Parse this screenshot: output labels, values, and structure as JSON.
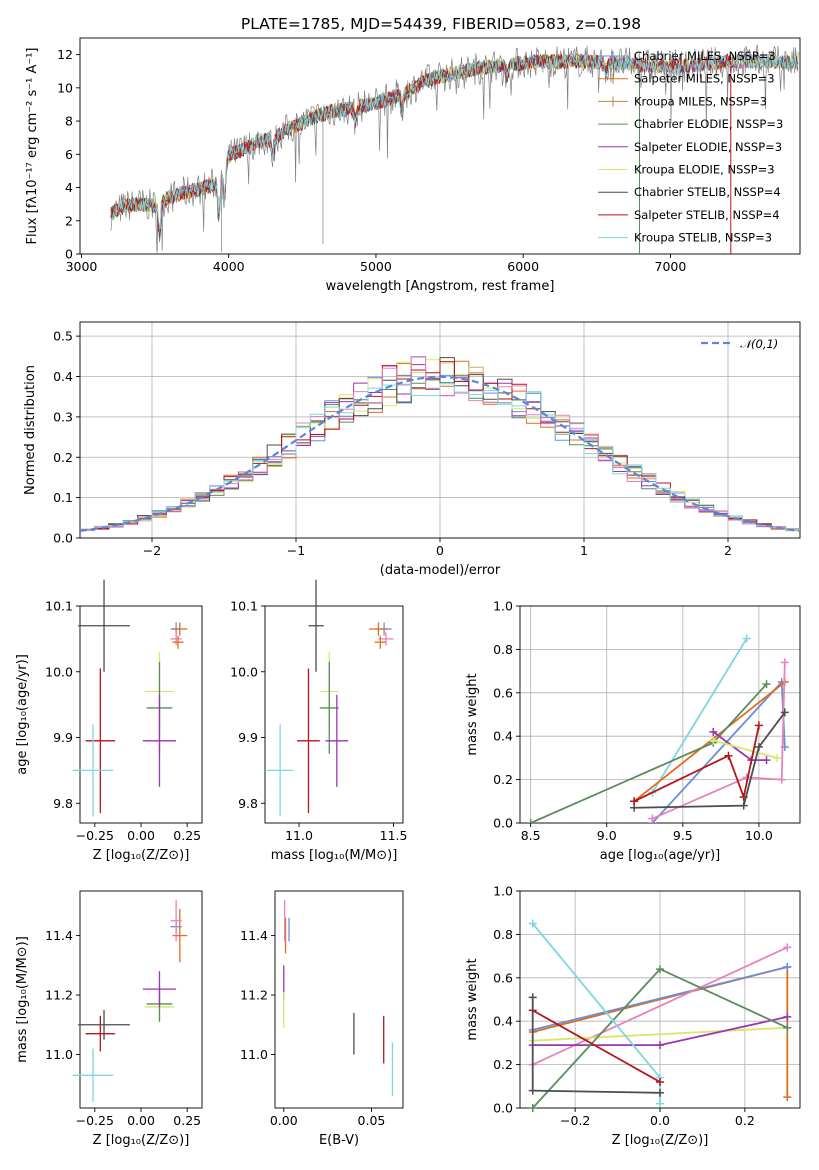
{
  "title": "PLATE=1785, MJD=54439, FIBERID=0583, z=0.198",
  "colors": {
    "chabrier_miles": "#6a8fd8",
    "salpeter_miles": "#e06d1e",
    "kroupa_miles": "#b98a4a",
    "chabrier_elodie": "#5b8c5e",
    "salpeter_elodie": "#9a35b3",
    "kroupa_elodie": "#d6e86a",
    "chabrier_stelib": "#4d4d4d",
    "salpeter_stelib": "#b5161c",
    "kroupa_stelib": "#7fd6e0",
    "pink": "#e882bd"
  },
  "chart_data": [
    {
      "type": "line",
      "title": "PLATE=1785, MJD=54439, FIBERID=0583, z=0.198",
      "xlabel": "wavelength [Angstrom, rest frame]",
      "ylabel": "Flux [fλ10⁻¹⁷ erg cm⁻² s⁻¹ A⁻¹]",
      "xlim": [
        2990,
        7880
      ],
      "ylim": [
        0,
        13
      ],
      "xticks": [
        "3000",
        "4000",
        "5000",
        "6000",
        "7000"
      ],
      "yticks": [
        "0",
        "2",
        "4",
        "6",
        "8",
        "10",
        "12"
      ],
      "legend_position": "right",
      "legend": [
        "Chabrier MILES, NSSP=3",
        "Salpeter MILES, NSSP=3",
        "Kroupa MILES, NSSP=3",
        "Chabrier ELODIE, NSSP=3",
        "Salpeter ELODIE, NSSP=3",
        "Kroupa ELODIE, NSSP=3",
        "Chabrier STELIB, NSSP=4",
        "Salpeter STELIB, NSSP=4",
        "Kroupa STELIB, NSSP=3"
      ],
      "continuum": {
        "x": [
          3200,
          3300,
          3400,
          3500,
          3600,
          3700,
          3800,
          3900,
          4000,
          4100,
          4200,
          4300,
          4400,
          4500,
          4600,
          4700,
          4800,
          4900,
          5000,
          5100,
          5200,
          5300,
          5400,
          5500,
          5600,
          5700,
          5800,
          5900,
          6000,
          6200,
          6400,
          6600,
          6800,
          7000,
          7200,
          7400,
          7600,
          7880
        ],
        "y": [
          2.4,
          2.9,
          3.0,
          2.9,
          3.4,
          3.7,
          3.9,
          4.2,
          5.9,
          6.3,
          6.8,
          6.9,
          7.5,
          7.9,
          8.3,
          8.6,
          8.7,
          8.9,
          9.1,
          9.4,
          9.7,
          10.3,
          10.6,
          10.8,
          11.0,
          11.2,
          11.3,
          11.4,
          11.5,
          11.6,
          11.6,
          11.5,
          11.4,
          11.3,
          11.4,
          11.6,
          11.6,
          11.5
        ]
      }
    },
    {
      "type": "bar",
      "xlabel": "(data-model)/error",
      "ylabel": "Normed distribution",
      "xlim": [
        -2.5,
        2.5
      ],
      "ylim": [
        0,
        0.535
      ],
      "xticks": [
        "−2",
        "−1",
        "0",
        "1",
        "2"
      ],
      "yticks": [
        "0.0",
        "0.1",
        "0.2",
        "0.3",
        "0.4",
        "0.5"
      ],
      "legend": [
        "𝒩(0,1)"
      ],
      "legend_position": "upper right",
      "bin_width": 0.1
    },
    {
      "type": "scatter",
      "xlabel": "Z [log₁₀(Z/Z⊙)]",
      "ylabel": "age  [log₁₀(age/yr)]",
      "xlim": [
        -0.33,
        0.33
      ],
      "ylim": [
        9.77,
        10.1
      ],
      "xticks": [
        "−0.25",
        "0.00",
        "0.25"
      ],
      "yticks": [
        "9.8",
        "9.9",
        "10.0",
        "10.1"
      ],
      "points": [
        {
          "x": 0.19,
          "y": 10.065,
          "xerr": 0.03,
          "yerr": 0.01
        },
        {
          "x": 0.21,
          "y": 10.065,
          "xerr": 0.04,
          "yerr": 0.01
        },
        {
          "x": 0.19,
          "y": 10.05,
          "xerr": 0.03,
          "yerr": 0.01
        },
        {
          "x": 0.2,
          "y": 10.045,
          "xerr": 0.03,
          "yerr": 0.01
        },
        {
          "x": -0.2,
          "y": 10.07,
          "xerr": 0.14,
          "yerr": 0.07
        },
        {
          "x": 0.1,
          "y": 9.97,
          "xerr": 0.08,
          "yerr": 0.06
        },
        {
          "x": 0.1,
          "y": 9.945,
          "xerr": 0.07,
          "yerr": 0.07
        },
        {
          "x": 0.1,
          "y": 9.895,
          "xerr": 0.09,
          "yerr": 0.07
        },
        {
          "x": -0.22,
          "y": 9.895,
          "xerr": 0.08,
          "yerr": 0.11
        },
        {
          "x": -0.26,
          "y": 9.85,
          "xerr": 0.11,
          "yerr": 0.07
        }
      ]
    },
    {
      "type": "scatter",
      "xlabel": "mass [log₁₀(M/M⊙)]",
      "xlim": [
        10.82,
        11.55
      ],
      "ylim": [
        9.77,
        10.1
      ],
      "xticks": [
        "11.0",
        "11.5"
      ],
      "yticks": [
        "9.8",
        "9.9",
        "10.0",
        "10.1"
      ]
    },
    {
      "type": "line",
      "xlabel": "age  [log₁₀(age/yr)]",
      "ylabel": "mass weight",
      "xlim": [
        8.43,
        10.27
      ],
      "ylim": [
        0,
        1.0
      ],
      "xticks": [
        "8.5",
        "9.0",
        "9.5",
        "10.0"
      ],
      "yticks": [
        "0.0",
        "0.2",
        "0.4",
        "0.6",
        "0.8",
        "1.0"
      ]
    },
    {
      "type": "scatter",
      "xlabel": "Z [log₁₀(Z/Z⊙)]",
      "ylabel": "mass [log₁₀(M/M⊙)]",
      "xlim": [
        -0.33,
        0.33
      ],
      "ylim": [
        10.82,
        11.55
      ],
      "xticks": [
        "−0.25",
        "0.00",
        "0.25"
      ],
      "yticks": [
        "11.0",
        "11.2",
        "11.4"
      ]
    },
    {
      "type": "scatter",
      "xlabel": "E(B-V)",
      "xlim": [
        -0.005,
        0.068
      ],
      "ylim": [
        10.82,
        11.55
      ],
      "xticks": [
        "0.00",
        "0.05"
      ],
      "yticks": [
        "11.0",
        "11.2",
        "11.4"
      ]
    },
    {
      "type": "line",
      "xlabel": "Z [log₁₀(Z/Z⊙)]",
      "ylabel": "mass weight",
      "xlim": [
        -0.33,
        0.33
      ],
      "ylim": [
        0,
        1.0
      ],
      "xticks": [
        "−0.2",
        "0.0",
        "0.2"
      ],
      "yticks": [
        "0.0",
        "0.2",
        "0.4",
        "0.6",
        "0.8",
        "1.0"
      ]
    }
  ]
}
